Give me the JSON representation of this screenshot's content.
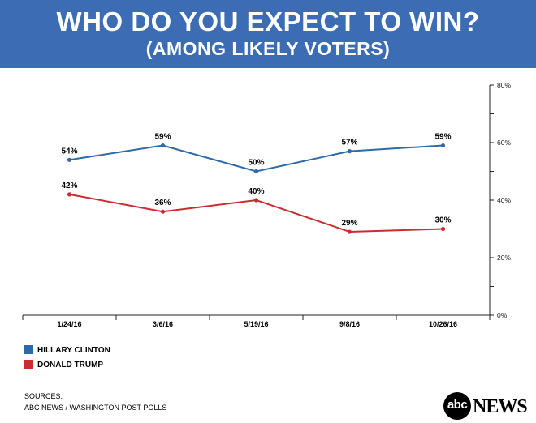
{
  "header": {
    "title": "WHO DO YOU EXPECT TO WIN?",
    "subtitle": "(AMONG LIKELY VOTERS)"
  },
  "chart_data": {
    "type": "line",
    "categories": [
      "1/24/16",
      "3/6/16",
      "5/19/16",
      "9/8/16",
      "10/26/16"
    ],
    "series": [
      {
        "name": "HILLARY CLINTON",
        "color": "#2e6aa7",
        "values": [
          54,
          59,
          50,
          57,
          59
        ],
        "labels": [
          "54%",
          "59%",
          "50%",
          "57%",
          "59%"
        ]
      },
      {
        "name": "DONALD TRUMP",
        "color": "#cc2b31",
        "values": [
          42,
          36,
          40,
          29,
          30
        ],
        "labels": [
          "42%",
          "36%",
          "40%",
          "29%",
          "30%"
        ]
      }
    ],
    "y_axis": {
      "min": 0,
      "max": 80,
      "ticks": [
        0,
        20,
        40,
        60,
        80
      ],
      "tick_labels": [
        "0%",
        "20%",
        "40%",
        "60%",
        "80%"
      ],
      "position": "right"
    },
    "grid": false
  },
  "legend": {
    "items": [
      {
        "label": "HILLARY CLINTON",
        "color": "#2e6aa7"
      },
      {
        "label": "DONALD TRUMP",
        "color": "#cc2b31"
      }
    ]
  },
  "footer": {
    "sources_label": "SOURCES:",
    "sources_text": "ABC NEWS / WASHINGTON POST POLLS"
  },
  "brand": {
    "logo_circle_text": "abc",
    "logo_word": "NEWS"
  }
}
